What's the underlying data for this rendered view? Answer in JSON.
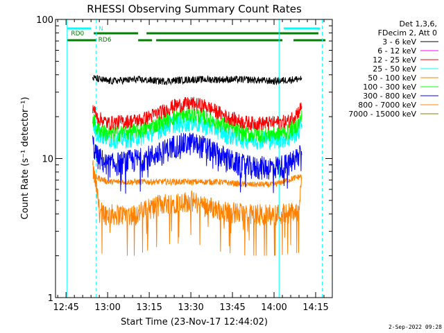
{
  "chart_data": {
    "type": "line",
    "title": "RHESSI Observing Summary Count Rates",
    "xlabel": "Start Time (23-Nov-17 12:44:02)",
    "ylabel": "Count Rate (s⁻¹ detector⁻¹)",
    "yscale": "log",
    "xlim_minutes": [
      44.03,
      861
    ],
    "ylim": [
      1,
      100
    ],
    "x_ticks": [
      {
        "min": 765,
        "label": "12:45"
      },
      {
        "min": 780,
        "label": "13:00"
      },
      {
        "min": 795,
        "label": "13:15"
      },
      {
        "min": 810,
        "label": "13:30"
      },
      {
        "min": 825,
        "label": "13:45"
      },
      {
        "min": 840,
        "label": "14:00"
      },
      {
        "min": 855,
        "label": "14:15"
      }
    ],
    "y_ticks": [
      {
        "value": 1,
        "label": "1"
      },
      {
        "value": 10,
        "label": "10"
      },
      {
        "value": 100,
        "label": "100"
      }
    ],
    "legend_header": [
      "Det 1,3,6,",
      "FDecim 2, Att 0"
    ],
    "legend_position": "right",
    "series": [
      {
        "name": "3 - 6 keV",
        "color": "#000000",
        "values": [
          [
            774.6,
            38
          ],
          [
            780,
            36
          ],
          [
            790,
            37
          ],
          [
            800,
            36
          ],
          [
            810,
            37
          ],
          [
            820,
            37
          ],
          [
            830,
            37
          ],
          [
            840,
            36
          ],
          [
            850,
            37.5
          ]
        ]
      },
      {
        "name": "6 - 12 keV",
        "color": "#ff00ff",
        "values": []
      },
      {
        "name": "12 - 25 keV",
        "color": "#ff0000",
        "values": [
          [
            774.6,
            24
          ],
          [
            776,
            20
          ],
          [
            780,
            18
          ],
          [
            786,
            18.5
          ],
          [
            792,
            19
          ],
          [
            799,
            21.5
          ],
          [
            804,
            24
          ],
          [
            810,
            25
          ],
          [
            815,
            24
          ],
          [
            819,
            22
          ],
          [
            823,
            20
          ],
          [
            828,
            18.5
          ],
          [
            832,
            18
          ],
          [
            838,
            18
          ],
          [
            845,
            18.5
          ],
          [
            849,
            22
          ],
          [
            850,
            24
          ]
        ]
      },
      {
        "name": "25 - 50 keV",
        "color": "#00ffff",
        "values": [
          [
            774.6,
            18
          ],
          [
            776,
            15.5
          ],
          [
            780,
            14
          ],
          [
            786,
            14
          ],
          [
            792,
            14.5
          ],
          [
            799,
            16.5
          ],
          [
            804,
            18
          ],
          [
            810,
            18.5
          ],
          [
            815,
            17.5
          ],
          [
            819,
            16.5
          ],
          [
            823,
            15
          ],
          [
            828,
            14
          ],
          [
            832,
            13.8
          ],
          [
            838,
            13.8
          ],
          [
            845,
            14
          ],
          [
            849,
            16
          ],
          [
            850,
            18
          ]
        ]
      },
      {
        "name": "50 - 100 keV",
        "color": "#ff8000",
        "values": [
          [
            775,
            7.5
          ],
          [
            780,
            6.8
          ],
          [
            790,
            6.8
          ],
          [
            800,
            6.8
          ],
          [
            810,
            6.8
          ],
          [
            820,
            6.8
          ],
          [
            830,
            6.5
          ],
          [
            840,
            6.5
          ],
          [
            850,
            7.5
          ]
        ]
      },
      {
        "name": "100 - 300 keV",
        "color": "#00ff00",
        "values": [
          [
            774.6,
            20
          ],
          [
            776,
            16.5
          ],
          [
            780,
            15
          ],
          [
            786,
            15.5
          ],
          [
            792,
            16
          ],
          [
            799,
            18
          ],
          [
            804,
            20
          ],
          [
            810,
            21
          ],
          [
            815,
            20
          ],
          [
            819,
            18.5
          ],
          [
            823,
            17
          ],
          [
            828,
            15.5
          ],
          [
            832,
            15
          ],
          [
            838,
            15
          ],
          [
            845,
            15.5
          ],
          [
            849,
            18
          ],
          [
            850,
            20
          ]
        ]
      },
      {
        "name": "300 - 800 keV",
        "color": "#0000ff",
        "values": [
          [
            774.6,
            13
          ],
          [
            776,
            10.5
          ],
          [
            780,
            9
          ],
          [
            786,
            9.5
          ],
          [
            792,
            10
          ],
          [
            799,
            11
          ],
          [
            804,
            12.5
          ],
          [
            810,
            13
          ],
          [
            815,
            12.2
          ],
          [
            819,
            11
          ],
          [
            823,
            10
          ],
          [
            828,
            9
          ],
          [
            832,
            8.7
          ],
          [
            838,
            8.7
          ],
          [
            845,
            9
          ],
          [
            849,
            10.5
          ],
          [
            850,
            13
          ]
        ]
      },
      {
        "name": "800 - 7000 keV",
        "color": "#ff8000",
        "values": [
          [
            774.6,
            8.5
          ],
          [
            777,
            4.2
          ],
          [
            780,
            4.0
          ],
          [
            790,
            4.0
          ],
          [
            800,
            4.8
          ],
          [
            810,
            5.0
          ],
          [
            820,
            4.3
          ],
          [
            830,
            4.0
          ],
          [
            840,
            4.0
          ],
          [
            849,
            4.2
          ],
          [
            850,
            8.5
          ]
        ]
      },
      {
        "name": "7000 - 15000 keV",
        "color": "#808000",
        "values": []
      }
    ],
    "annotations": [
      {
        "text": "N",
        "color": "#00ffff"
      },
      {
        "text": "RD0",
        "color": "#008000"
      },
      {
        "text": "RD6",
        "color": "#008000"
      }
    ],
    "bands": {
      "night_cyan": [
        [
          765.4,
          774.0
        ],
        [
          843.5,
          856.5
        ]
      ],
      "green_upper": [
        [
          775.0,
          791.0
        ],
        [
          794.0,
          856.0
        ]
      ],
      "green_lower": [
        [
          765.4,
          776.0
        ],
        [
          791.0,
          796.0
        ],
        [
          797.5,
          843.0
        ],
        [
          847.0,
          858.5
        ]
      ]
    },
    "vlines": [
      {
        "min": 765.4,
        "style": "solid",
        "color": "#00ffff"
      },
      {
        "min": 775.9,
        "style": "dashed",
        "color": "#00ffff"
      },
      {
        "min": 841.8,
        "style": "solid",
        "color": "#00ffff"
      },
      {
        "min": 857.4,
        "style": "dashed",
        "color": "#00ffff"
      }
    ]
  },
  "footer": {
    "timestamp": "2-Sep-2022 09:28"
  }
}
